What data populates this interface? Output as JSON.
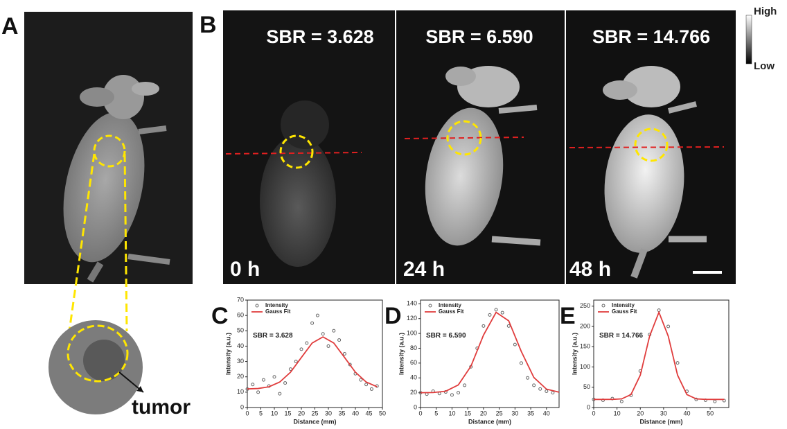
{
  "figure": {
    "panel_labels": [
      "A",
      "B",
      "C",
      "D",
      "E"
    ],
    "sbr": [
      "SBR = 3.628",
      "SBR = 6.590",
      "SBR = 14.766"
    ],
    "times": [
      "0 h",
      "24 h",
      "48 h"
    ],
    "colorbar": {
      "high": "High",
      "low": "Low"
    },
    "tumor_label": "tumor"
  },
  "chart_data": [
    {
      "type": "scatter",
      "annotation": "SBR = 3.628",
      "xlabel": "Distance (mm)",
      "ylabel": "Intensity (a.u.)",
      "xlim": [
        0,
        50
      ],
      "xticks": [
        0,
        5,
        10,
        15,
        20,
        25,
        30,
        35,
        40,
        45,
        50
      ],
      "ylim": [
        0,
        70
      ],
      "yticks": [
        0,
        10,
        20,
        30,
        40,
        50,
        60,
        70
      ],
      "series": [
        {
          "name": "Intensity",
          "color": "#666666",
          "mode": "markers",
          "x": [
            0,
            2,
            4,
            6,
            8,
            10,
            12,
            14,
            16,
            18,
            20,
            22,
            24,
            26,
            28,
            30,
            32,
            34,
            36,
            38,
            40,
            42,
            44,
            46,
            48
          ],
          "values": [
            12,
            15,
            10,
            18,
            14,
            20,
            9,
            16,
            25,
            30,
            38,
            42,
            55,
            60,
            48,
            40,
            50,
            44,
            35,
            28,
            22,
            18,
            15,
            12,
            14
          ]
        },
        {
          "name": "Gauss Fit",
          "color": "#e03c3c",
          "mode": "line",
          "x": [
            0,
            4,
            8,
            12,
            16,
            20,
            24,
            28,
            32,
            36,
            40,
            44,
            48
          ],
          "values": [
            12.1,
            12.4,
            13.5,
            16.6,
            23.0,
            32.6,
            42.0,
            46,
            42.0,
            32.6,
            23.0,
            16.6,
            13.5
          ]
        }
      ]
    },
    {
      "type": "scatter",
      "annotation": "SBR = 6.590",
      "xlabel": "Distance (mm)",
      "ylabel": "Intensity (a.u.)",
      "xlim": [
        0,
        44
      ],
      "xticks": [
        0,
        5,
        10,
        15,
        20,
        25,
        30,
        35,
        40
      ],
      "ylim": [
        0,
        145
      ],
      "yticks": [
        0,
        20,
        40,
        60,
        80,
        100,
        120,
        140
      ],
      "series": [
        {
          "name": "Intensity",
          "color": "#666666",
          "mode": "markers",
          "x": [
            0,
            2,
            4,
            6,
            8,
            10,
            12,
            14,
            16,
            18,
            20,
            22,
            24,
            26,
            28,
            30,
            32,
            34,
            36,
            38,
            40,
            42
          ],
          "values": [
            20,
            18,
            22,
            19,
            21,
            17,
            20,
            30,
            55,
            80,
            110,
            125,
            132,
            128,
            110,
            85,
            60,
            40,
            30,
            25,
            22,
            20
          ]
        },
        {
          "name": "Gauss Fit",
          "color": "#e03c3c",
          "mode": "line",
          "x": [
            0,
            4,
            8,
            12,
            16,
            20,
            24,
            28,
            32,
            36,
            40,
            44
          ],
          "values": [
            20,
            20.2,
            22.0,
            30.5,
            55.7,
            97.7,
            128.5,
            117.1,
            75.7,
            40.5,
            24.8,
            20.7
          ]
        }
      ]
    },
    {
      "type": "scatter",
      "annotation": "SBR = 14.766",
      "xlabel": "Distance (mm)",
      "ylabel": "Intensity (a.u.)",
      "xlim": [
        0,
        58
      ],
      "xticks": [
        0,
        10,
        20,
        30,
        40,
        50
      ],
      "ylim": [
        0,
        265
      ],
      "yticks": [
        0,
        50,
        100,
        150,
        200,
        250
      ],
      "series": [
        {
          "name": "Intensity",
          "color": "#666666",
          "mode": "markers",
          "x": [
            0,
            4,
            8,
            12,
            16,
            20,
            24,
            28,
            32,
            36,
            40,
            44,
            48,
            52,
            56
          ],
          "values": [
            20,
            18,
            22,
            15,
            30,
            90,
            180,
            240,
            200,
            110,
            40,
            20,
            18,
            15,
            17
          ]
        },
        {
          "name": "Gauss Fit",
          "color": "#e03c3c",
          "mode": "line",
          "x": [
            0,
            4,
            8,
            12,
            16,
            20,
            24,
            28,
            32,
            36,
            40,
            44,
            48,
            52,
            56
          ],
          "values": [
            20,
            20,
            20.1,
            21.3,
            32.0,
            79.8,
            176.1,
            235,
            176.1,
            79.8,
            32.0,
            21.3,
            20.1,
            20,
            20
          ]
        }
      ]
    }
  ]
}
